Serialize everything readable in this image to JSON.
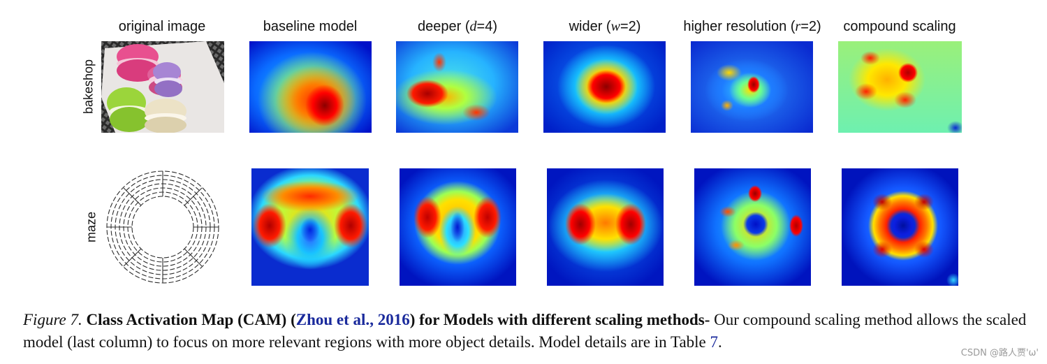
{
  "columns": [
    {
      "id": "original",
      "title": "original image"
    },
    {
      "id": "baseline",
      "title": "baseline model"
    },
    {
      "id": "deeper",
      "title_prefix": "deeper (",
      "title_var": "d",
      "title_suffix": "=4)"
    },
    {
      "id": "wider",
      "title_prefix": "wider (",
      "title_var": "w",
      "title_suffix": "=2)"
    },
    {
      "id": "hires",
      "title_prefix": "higher resolution (",
      "title_var": "r",
      "title_suffix": "=2)"
    },
    {
      "id": "compound",
      "title": "compound scaling"
    }
  ],
  "rows": [
    {
      "id": "bakeshop",
      "label": "bakeshop"
    },
    {
      "id": "maze",
      "label": "maze"
    }
  ],
  "caption": {
    "figure_label": "Figure 7.",
    "bold_part1": "Class Activation Map (CAM) (",
    "cite_author": "Zhou et al.",
    "cite_sep": ", ",
    "cite_year": "2016",
    "bold_part2": ") for Models with different scaling methods-",
    "body": " Our compound scaling method allows the scaled model (last column) to focus on more relevant regions with more object details. Model details are in Table ",
    "table_ref": "7",
    "end": "."
  },
  "watermark": "CSDN @路人贾'ω'"
}
